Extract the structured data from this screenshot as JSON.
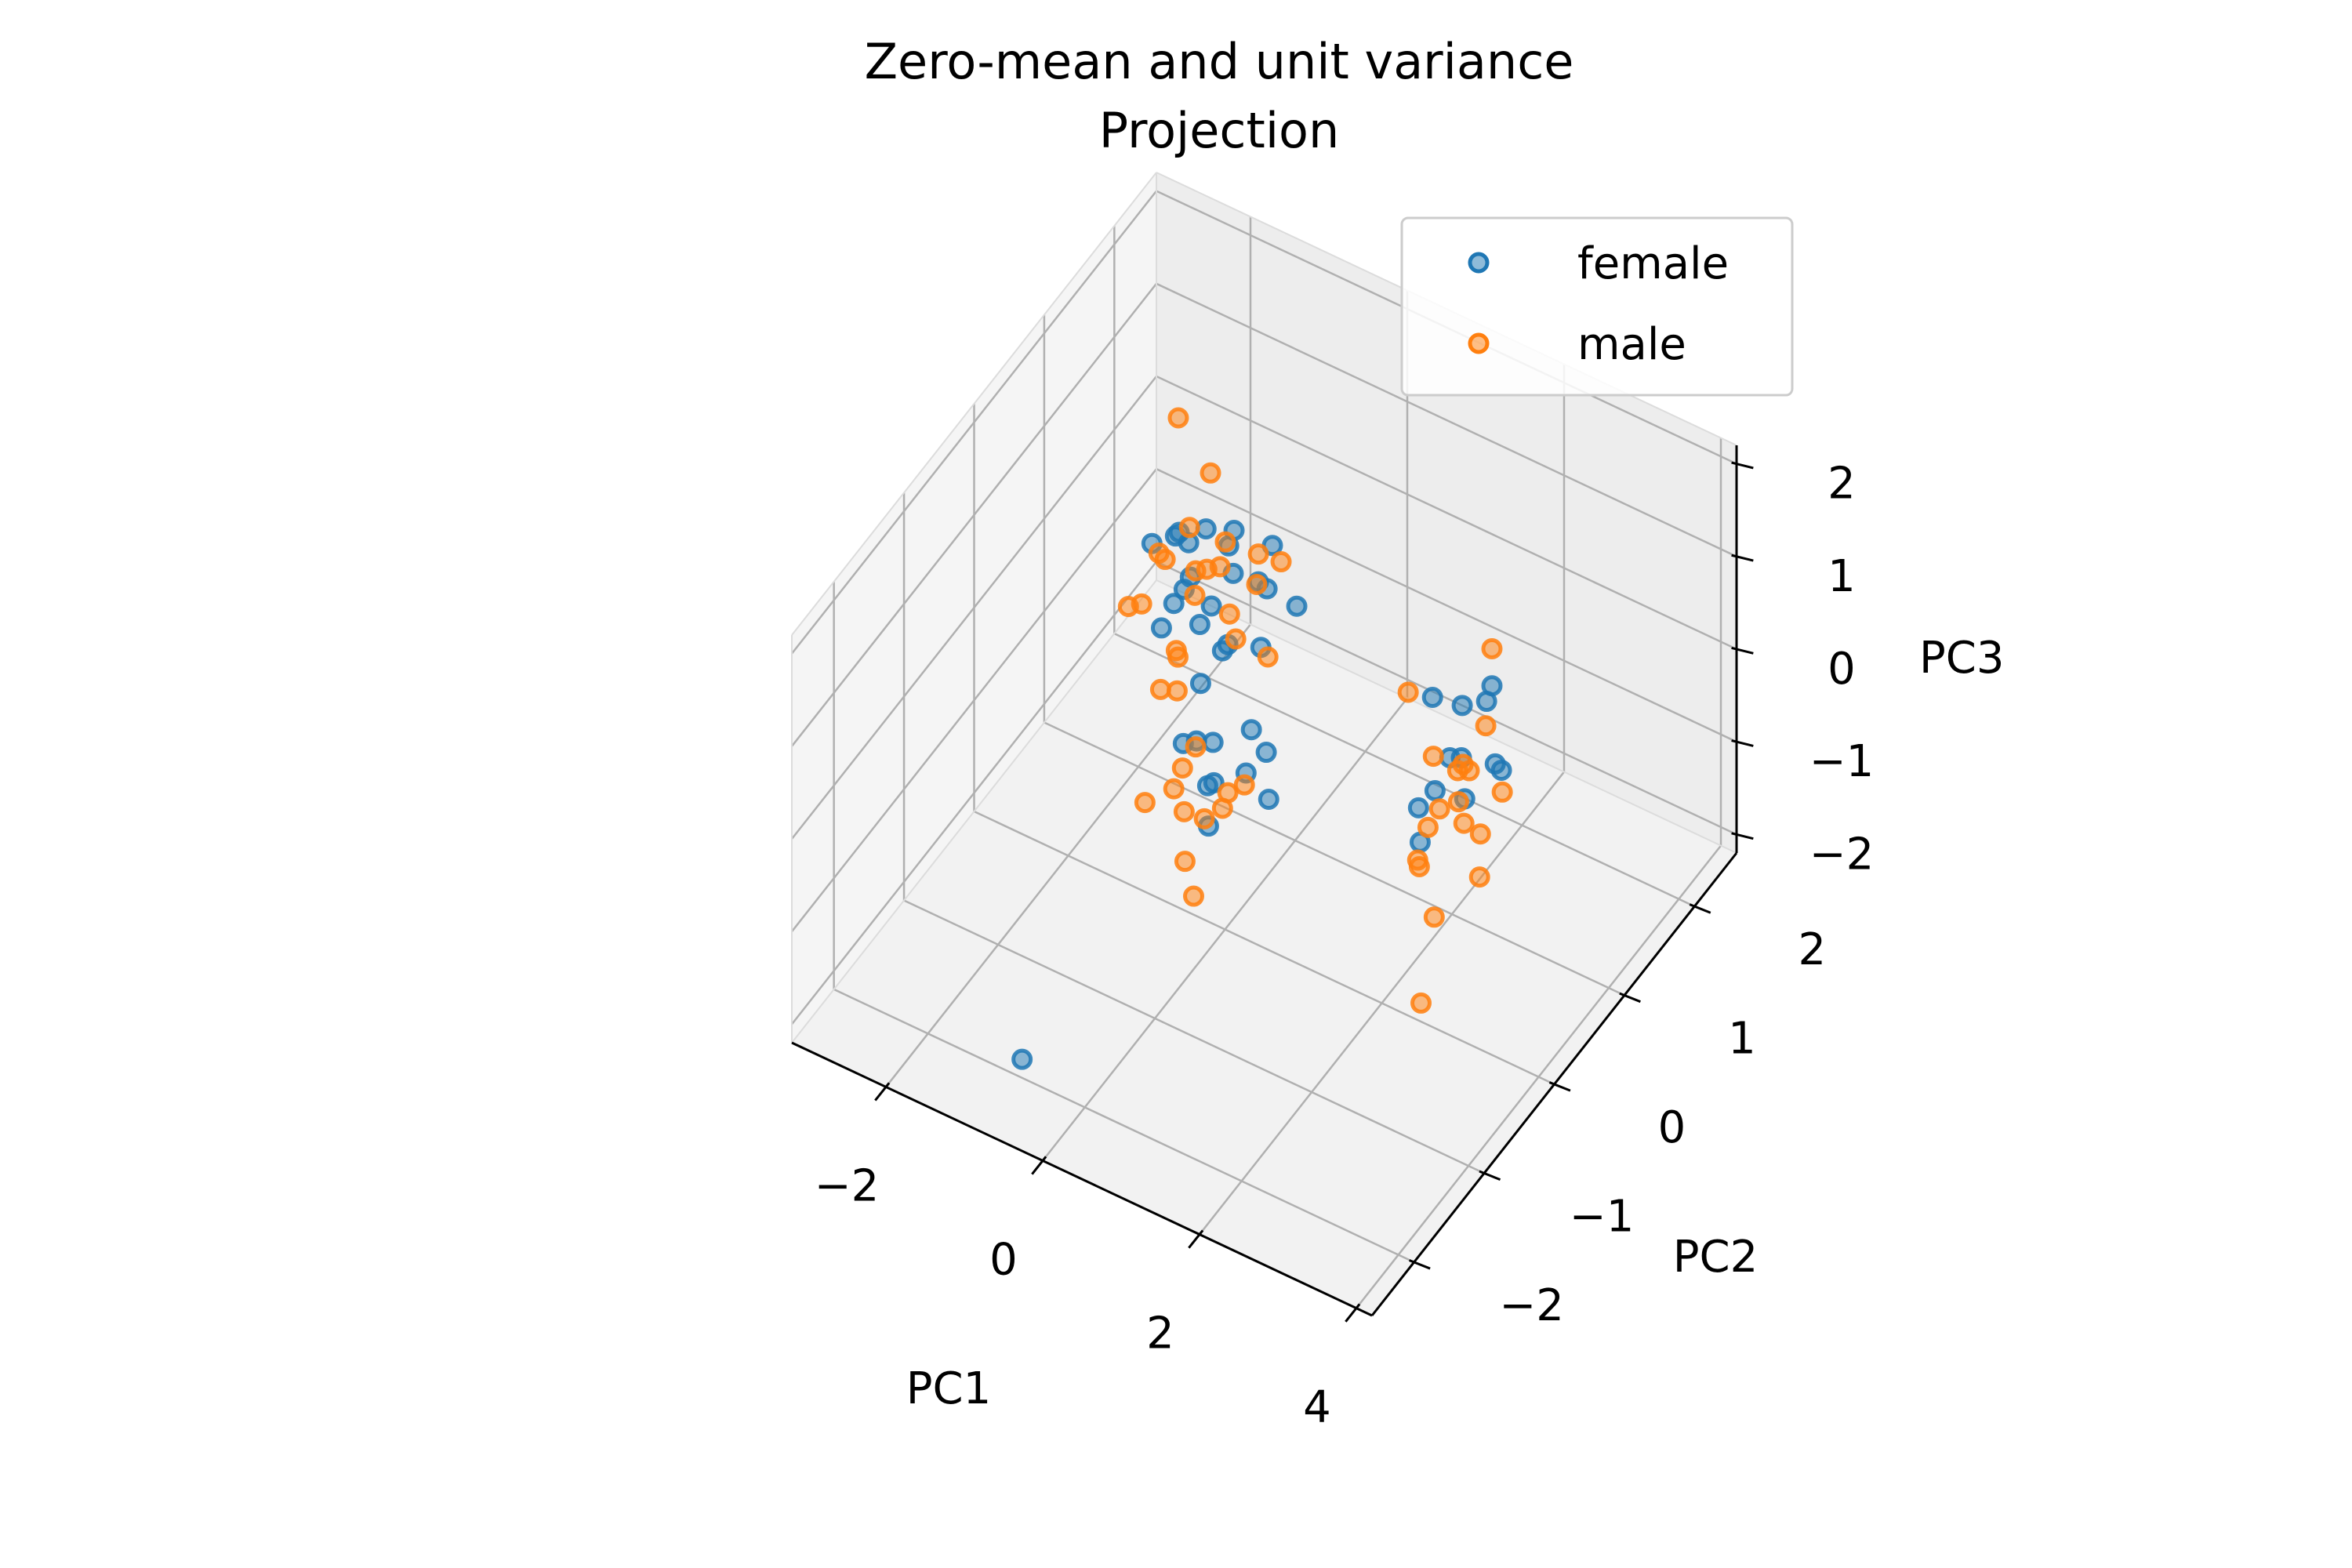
{
  "chart_data": {
    "type": "scatter",
    "title": "Zero-mean and unit variance\nProjection",
    "xlabel": "PC1",
    "ylabel": "PC2",
    "zlabel": "PC3",
    "xlim": [
      -3.2,
      4.2
    ],
    "ylim": [
      -2.6,
      2.6
    ],
    "zlim": [
      -2.2,
      2.2
    ],
    "xticks": [
      -2,
      0,
      2,
      4
    ],
    "yticks": [
      -2,
      -1,
      0,
      1,
      2
    ],
    "zticks": [
      -2,
      -1,
      0,
      1,
      2
    ],
    "tick_labels": {
      "x": [
        "−2",
        "0",
        "2",
        "4"
      ],
      "y": [
        "−2",
        "−1",
        "0",
        "1",
        "2"
      ],
      "z": [
        "−2",
        "−1",
        "0",
        "1",
        "2"
      ]
    },
    "grid": true,
    "legend_position": "top-right",
    "series": [
      {
        "name": "female",
        "color": "#1f77b4",
        "points": [
          [
            -1.2,
            0.3,
            1.2
          ],
          [
            -1.0,
            0.6,
            1.0
          ],
          [
            -0.8,
            0.4,
            0.9
          ],
          [
            -0.6,
            0.8,
            1.1
          ],
          [
            -0.5,
            0.2,
            0.7
          ],
          [
            -0.4,
            0.5,
            1.3
          ],
          [
            -0.2,
            0.7,
            0.8
          ],
          [
            -0.9,
            0.1,
            0.6
          ],
          [
            -0.7,
            0.9,
            0.5
          ],
          [
            -1.1,
            0.5,
            0.4
          ],
          [
            -0.3,
            0.3,
            0.4
          ],
          [
            0.0,
            0.6,
            0.9
          ],
          [
            -0.6,
            0.4,
            1.5
          ],
          [
            -0.8,
            0.7,
            0.3
          ],
          [
            -0.4,
            0.1,
            0.2
          ],
          [
            -1.3,
            0.8,
            0.8
          ],
          [
            0.1,
            0.4,
            0.5
          ],
          [
            -0.2,
            0.9,
            1.0
          ],
          [
            -0.9,
            0.3,
            1.4
          ],
          [
            -0.5,
            0.6,
            0.1
          ],
          [
            0.2,
            0.8,
            0.6
          ],
          [
            -0.7,
            0.2,
            1.0
          ],
          [
            -0.8,
            0.3,
            -0.8
          ],
          [
            -0.6,
            0.5,
            -0.9
          ],
          [
            -0.4,
            0.2,
            -1.0
          ],
          [
            -0.2,
            0.6,
            -0.7
          ],
          [
            -0.5,
            0.4,
            -1.2
          ],
          [
            0.0,
            0.3,
            -0.8
          ],
          [
            -0.9,
            0.6,
            -1.1
          ],
          [
            -0.3,
            0.1,
            -1.3
          ],
          [
            -0.1,
            0.7,
            -1.0
          ],
          [
            0.2,
            0.4,
            -1.1
          ],
          [
            -0.8,
            -2.0,
            -2.0
          ],
          [
            2.2,
            0.5,
            0.7
          ],
          [
            2.4,
            0.7,
            0.5
          ],
          [
            2.6,
            0.3,
            0.4
          ],
          [
            2.8,
            0.6,
            0.8
          ],
          [
            2.5,
            0.2,
            0.1
          ],
          [
            2.3,
            0.8,
            -0.2
          ],
          [
            2.7,
            0.4,
            -0.1
          ],
          [
            3.0,
            0.5,
            0.3
          ],
          [
            2.4,
            0.1,
            -0.4
          ],
          [
            2.9,
            0.7,
            0.0
          ],
          [
            2.6,
            0.9,
            0.6
          ],
          [
            2.2,
            0.3,
            -0.3
          ]
        ]
      },
      {
        "name": "male",
        "color": "#ff7f0e",
        "points": [
          [
            -1.4,
            0.9,
            1.9
          ],
          [
            -1.2,
            0.4,
            1.0
          ],
          [
            -1.0,
            0.7,
            0.6
          ],
          [
            -0.8,
            0.2,
            0.3
          ],
          [
            -0.6,
            0.6,
            0.9
          ],
          [
            -0.4,
            0.9,
            0.5
          ],
          [
            -1.5,
            0.3,
            0.4
          ],
          [
            -1.1,
            0.8,
            0.2
          ],
          [
            -0.9,
            0.5,
            1.3
          ],
          [
            -0.3,
            0.4,
            0.7
          ],
          [
            -0.7,
            0.1,
            0.0
          ],
          [
            -0.2,
            0.7,
            1.1
          ],
          [
            0.1,
            0.5,
            0.3
          ],
          [
            -1.3,
            0.6,
            0.7
          ],
          [
            -0.5,
            0.3,
            1.2
          ],
          [
            -0.8,
            0.9,
            0.8
          ],
          [
            -1.0,
            0.2,
            -0.2
          ],
          [
            0.0,
            0.8,
            1.0
          ],
          [
            -0.6,
            0.0,
            0.5
          ],
          [
            -1.6,
            0.6,
            0.1
          ],
          [
            -0.4,
            0.6,
            0.2
          ],
          [
            -0.9,
            0.8,
            1.6
          ],
          [
            -0.9,
            0.4,
            -1.2
          ],
          [
            -0.7,
            0.2,
            -1.4
          ],
          [
            -0.5,
            0.6,
            -1.5
          ],
          [
            -0.3,
            0.3,
            -1.3
          ],
          [
            -1.1,
            0.5,
            -1.6
          ],
          [
            -0.6,
            0.1,
            -1.8
          ],
          [
            -0.2,
            0.5,
            -1.2
          ],
          [
            -1.2,
            0.2,
            -1.5
          ],
          [
            -0.8,
            0.6,
            -1.9
          ],
          [
            -0.4,
            0.0,
            -2.0
          ],
          [
            -1.0,
            0.7,
            -1.3
          ],
          [
            1.8,
            0.6,
            0.5
          ],
          [
            2.3,
            0.4,
            0.2
          ],
          [
            2.5,
            0.6,
            0.0
          ],
          [
            2.7,
            0.3,
            0.3
          ],
          [
            2.4,
            0.8,
            -0.3
          ],
          [
            2.6,
            0.5,
            -0.5
          ],
          [
            2.8,
            0.2,
            0.1
          ],
          [
            2.2,
            0.6,
            -0.6
          ],
          [
            2.9,
            0.4,
            -0.4
          ],
          [
            2.5,
            0.1,
            -0.2
          ],
          [
            2.7,
            0.7,
            0.4
          ],
          [
            2.3,
            0.2,
            -0.8
          ],
          [
            2.6,
            0.9,
            1.0
          ],
          [
            2.4,
            0.3,
            -1.4
          ],
          [
            2.8,
            0.5,
            -1.0
          ],
          [
            2.5,
            0.0,
            -2.0
          ],
          [
            2.1,
            0.4,
            -1.0
          ],
          [
            3.0,
            0.6,
            -0.1
          ]
        ]
      }
    ]
  }
}
